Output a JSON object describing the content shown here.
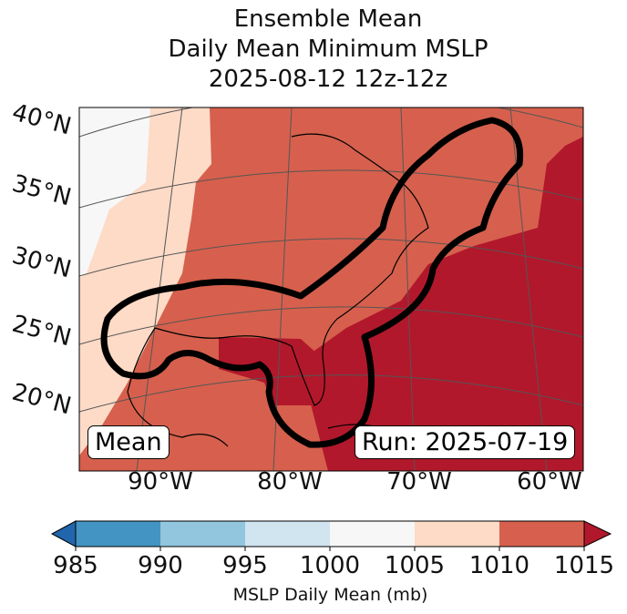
{
  "title": {
    "line1": "Ensemble Mean",
    "line2": "Daily Mean Minimum MSLP",
    "line3": "2025-08-12 12z-12z"
  },
  "lat_labels": [
    "40°N",
    "35°N",
    "30°N",
    "25°N",
    "20°N"
  ],
  "lon_labels": [
    "90°W",
    "80°W",
    "70°W",
    "60°W"
  ],
  "annotations": {
    "mean": "Mean",
    "run": "Run: 2025-07-19"
  },
  "colorbar": {
    "ticks": [
      "985",
      "990",
      "995",
      "1000",
      "1005",
      "1010",
      "1015"
    ],
    "label": "MSLP Daily Mean (mb)",
    "colors": [
      "#2166ac",
      "#4393c3",
      "#92c5de",
      "#d1e5f0",
      "#f7f7f7",
      "#fddbc7",
      "#d6604d",
      "#b2182b"
    ]
  }
}
